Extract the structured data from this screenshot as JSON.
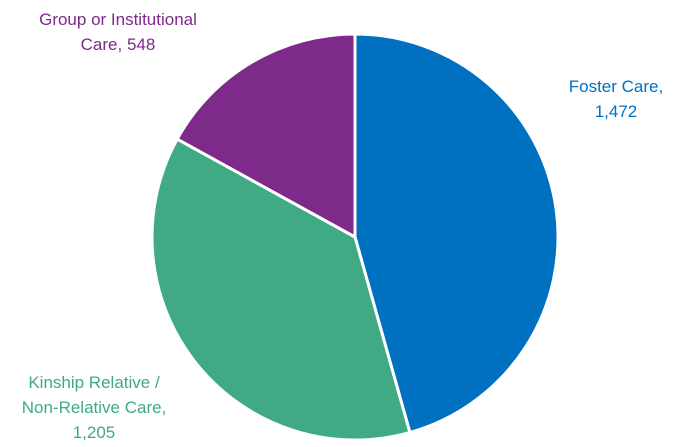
{
  "chart_data": {
    "type": "pie",
    "start_angle_deg": 0,
    "direction": "clockwise",
    "slices": [
      {
        "label_lines": [
          "Foster Care,",
          "1,472"
        ],
        "value": 1472,
        "color": "#0070C0"
      },
      {
        "label_lines": [
          "Kinship Relative /",
          "Non-Relative Care,",
          "1,205"
        ],
        "value": 1205,
        "color": "#3FAA84"
      },
      {
        "label_lines": [
          "Group or Institutional",
          "Care, 548"
        ],
        "value": 548,
        "color": "#7E2A8A"
      }
    ]
  }
}
